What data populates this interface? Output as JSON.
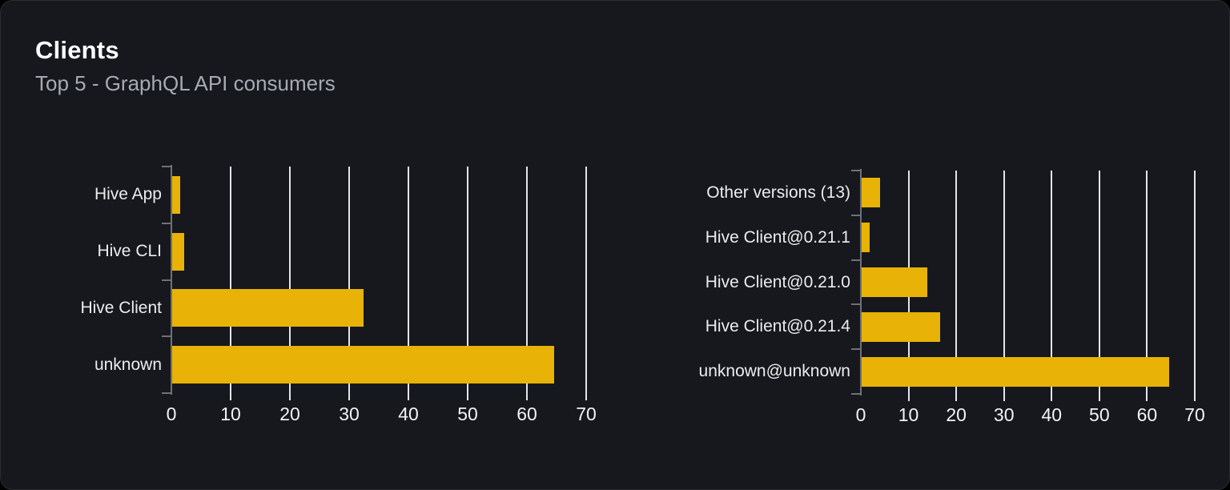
{
  "header": {
    "title": "Clients",
    "subtitle": "Top 5 - GraphQL API consumers"
  },
  "colors": {
    "card_background": "#16181d",
    "card_border": "#2b2d33",
    "bar": "#e8b207",
    "gridline": "#e2e5ec",
    "axis": "#6e7177",
    "title_text": "#ffffff",
    "subtitle_text": "#a6abb3",
    "label_text": "#ececee"
  },
  "chart_data": [
    {
      "type": "bar",
      "orientation": "horizontal",
      "title": "",
      "xlabel": "",
      "ylabel": "",
      "categories": [
        "Hive App",
        "Hive CLI",
        "Hive Client",
        "unknown"
      ],
      "values": [
        1.4,
        2.0,
        32.3,
        64.4
      ],
      "xlim": [
        0,
        70
      ],
      "ticks": [
        0,
        10,
        20,
        30,
        40,
        50,
        60,
        70
      ],
      "tick_labels": [
        "0",
        "10",
        "20",
        "30",
        "40",
        "50",
        "60",
        "70"
      ],
      "grid": true,
      "legend": false
    },
    {
      "type": "bar",
      "orientation": "horizontal",
      "title": "",
      "xlabel": "",
      "ylabel": "",
      "categories": [
        "Other versions (13)",
        "Hive Client@0.21.1",
        "Hive Client@0.21.0",
        "Hive Client@0.21.4",
        "unknown@unknown"
      ],
      "values": [
        3.9,
        1.7,
        13.7,
        16.4,
        64.4
      ],
      "xlim": [
        0,
        70
      ],
      "ticks": [
        0,
        10,
        20,
        30,
        40,
        50,
        60,
        70
      ],
      "tick_labels": [
        "0",
        "10",
        "20",
        "30",
        "40",
        "50",
        "60",
        "70"
      ],
      "grid": true,
      "legend": false
    }
  ]
}
